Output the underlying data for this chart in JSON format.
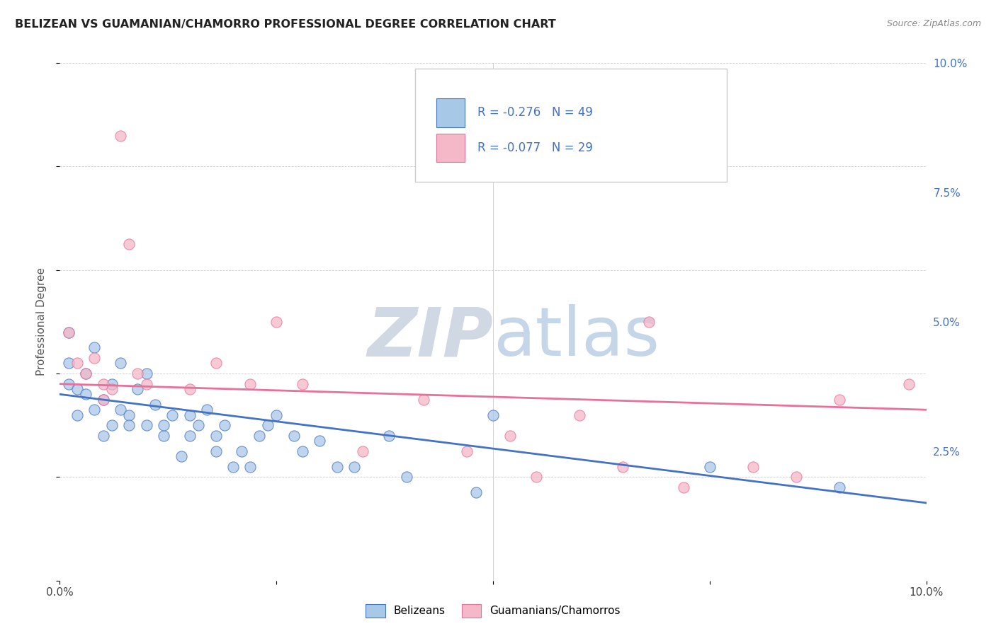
{
  "title": "BELIZEAN VS GUAMANIAN/CHAMORRO PROFESSIONAL DEGREE CORRELATION CHART",
  "source": "Source: ZipAtlas.com",
  "ylabel": "Professional Degree",
  "r_belizean": -0.276,
  "n_belizean": 49,
  "r_guamanian": -0.077,
  "n_guamanian": 29,
  "xmin": 0.0,
  "xmax": 0.1,
  "ymin": 0.0,
  "ymax": 0.1,
  "color_belizean": "#a8c8e8",
  "color_guamanian": "#f4b8c8",
  "line_color_belizean": "#4472c4",
  "line_color_guamanian": "#e8709a",
  "background_color": "#ffffff",
  "belizean_x": [
    0.001,
    0.001,
    0.001,
    0.002,
    0.002,
    0.003,
    0.003,
    0.004,
    0.004,
    0.005,
    0.005,
    0.006,
    0.006,
    0.007,
    0.007,
    0.008,
    0.008,
    0.009,
    0.01,
    0.01,
    0.011,
    0.012,
    0.012,
    0.013,
    0.014,
    0.015,
    0.015,
    0.016,
    0.017,
    0.018,
    0.018,
    0.019,
    0.02,
    0.021,
    0.022,
    0.023,
    0.024,
    0.025,
    0.027,
    0.028,
    0.03,
    0.032,
    0.034,
    0.038,
    0.04,
    0.048,
    0.05,
    0.075,
    0.09
  ],
  "belizean_y": [
    0.048,
    0.042,
    0.038,
    0.037,
    0.032,
    0.04,
    0.036,
    0.045,
    0.033,
    0.035,
    0.028,
    0.038,
    0.03,
    0.042,
    0.033,
    0.032,
    0.03,
    0.037,
    0.04,
    0.03,
    0.034,
    0.028,
    0.03,
    0.032,
    0.024,
    0.032,
    0.028,
    0.03,
    0.033,
    0.028,
    0.025,
    0.03,
    0.022,
    0.025,
    0.022,
    0.028,
    0.03,
    0.032,
    0.028,
    0.025,
    0.027,
    0.022,
    0.022,
    0.028,
    0.02,
    0.017,
    0.032,
    0.022,
    0.018
  ],
  "guamanian_x": [
    0.001,
    0.002,
    0.003,
    0.004,
    0.005,
    0.005,
    0.006,
    0.007,
    0.008,
    0.009,
    0.01,
    0.015,
    0.018,
    0.022,
    0.025,
    0.028,
    0.035,
    0.042,
    0.047,
    0.052,
    0.055,
    0.06,
    0.065,
    0.068,
    0.072,
    0.08,
    0.085,
    0.09,
    0.098
  ],
  "guamanian_y": [
    0.048,
    0.042,
    0.04,
    0.043,
    0.038,
    0.035,
    0.037,
    0.086,
    0.065,
    0.04,
    0.038,
    0.037,
    0.042,
    0.038,
    0.05,
    0.038,
    0.025,
    0.035,
    0.025,
    0.028,
    0.02,
    0.032,
    0.022,
    0.05,
    0.018,
    0.022,
    0.02,
    0.035,
    0.038
  ],
  "trend_b_start": 0.036,
  "trend_b_end": 0.015,
  "trend_g_start": 0.038,
  "trend_g_end": 0.033
}
